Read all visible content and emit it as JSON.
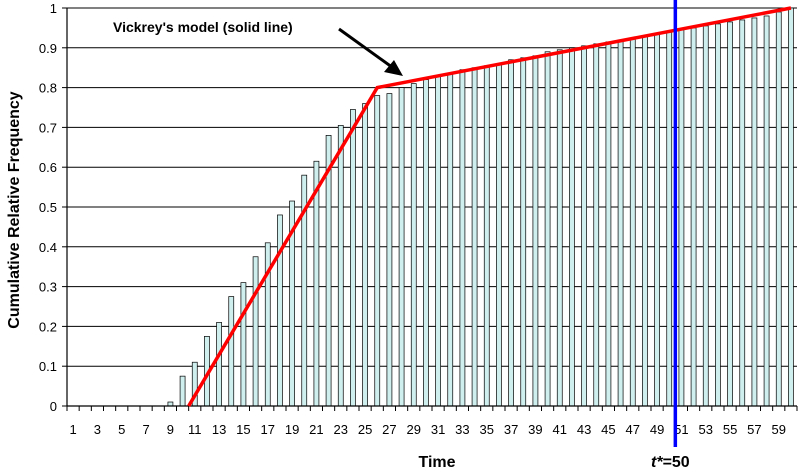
{
  "chart_data": {
    "type": "bar",
    "xlabel": "Time",
    "ylabel": "Cumulative Relative Frequency",
    "ylim": [
      0,
      1
    ],
    "yticks": [
      0,
      0.1,
      0.2,
      0.3,
      0.4,
      0.5,
      0.6,
      0.7,
      0.8,
      0.9,
      1
    ],
    "ytick_labels": [
      "0",
      "0.1",
      "0.2",
      "0.3",
      "0.4",
      "0.5",
      "0.6",
      "0.7",
      "0.8",
      "0.9",
      "1"
    ],
    "x_tick_labels": [
      "1",
      "3",
      "5",
      "7",
      "9",
      "11",
      "13",
      "15",
      "17",
      "19",
      "21",
      "23",
      "25",
      "27",
      "29",
      "31",
      "33",
      "35",
      "37",
      "39",
      "41",
      "43",
      "45",
      "47",
      "49",
      "51",
      "53",
      "55",
      "57",
      "59"
    ],
    "x_tick_values": [
      1,
      3,
      5,
      7,
      9,
      11,
      13,
      15,
      17,
      19,
      21,
      23,
      25,
      27,
      29,
      31,
      33,
      35,
      37,
      39,
      41,
      43,
      45,
      47,
      49,
      51,
      53,
      55,
      57,
      59
    ],
    "categories": [
      1,
      2,
      3,
      4,
      5,
      6,
      7,
      8,
      9,
      10,
      11,
      12,
      13,
      14,
      15,
      16,
      17,
      18,
      19,
      20,
      21,
      22,
      23,
      24,
      25,
      26,
      27,
      28,
      29,
      30,
      31,
      32,
      33,
      34,
      35,
      36,
      37,
      38,
      39,
      40,
      41,
      42,
      43,
      44,
      45,
      46,
      47,
      48,
      49,
      50,
      51,
      52,
      53,
      54,
      55,
      56,
      57,
      58,
      59,
      60
    ],
    "values": [
      0,
      0,
      0,
      0,
      0,
      0,
      0,
      0,
      0.01,
      0.075,
      0.11,
      0.175,
      0.21,
      0.275,
      0.31,
      0.375,
      0.41,
      0.48,
      0.515,
      0.58,
      0.615,
      0.68,
      0.705,
      0.745,
      0.76,
      0.78,
      0.785,
      0.8,
      0.81,
      0.82,
      0.83,
      0.835,
      0.845,
      0.85,
      0.855,
      0.86,
      0.87,
      0.875,
      0.88,
      0.89,
      0.895,
      0.9,
      0.905,
      0.91,
      0.915,
      0.92,
      0.925,
      0.93,
      0.935,
      0.94,
      0.945,
      0.95,
      0.955,
      0.96,
      0.965,
      0.97,
      0.975,
      0.98,
      0.99,
      1.0
    ],
    "bar_color": "#cfeeee",
    "bar_stroke": "#000000",
    "grid": true,
    "model_line": {
      "label": "Vickrey's model (solid line)",
      "color": "#ff0000",
      "points": [
        [
          10.5,
          0
        ],
        [
          26,
          0.8
        ],
        [
          60,
          1.0
        ]
      ]
    },
    "vline": {
      "x": 50,
      "label_italic": "t*",
      "label_rest": "=50",
      "color": "#0000ff"
    }
  }
}
